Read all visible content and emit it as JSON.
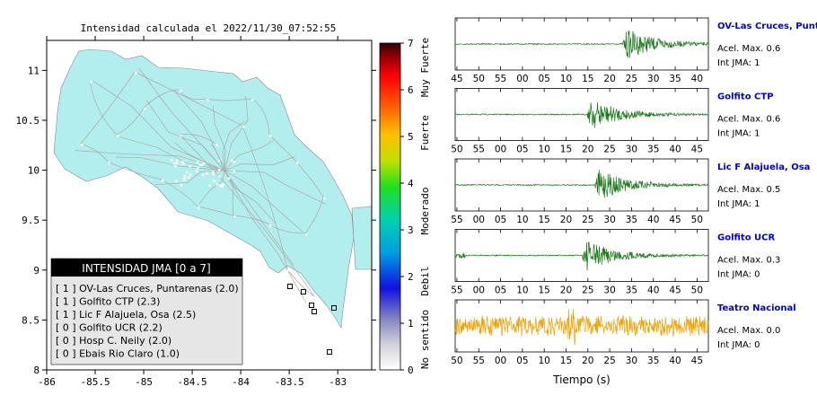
{
  "map": {
    "title": "Intensidad calculada el 2022/11/30_07:52:55",
    "lat_ticks": [
      "11",
      "10.5",
      "10",
      "9.5",
      "9",
      "8.5",
      "8"
    ],
    "lon_ticks": [
      "-86",
      "-85.5",
      "-85",
      "-84.5",
      "-84",
      "-83.5",
      "-83"
    ],
    "xlim": [
      -86,
      -82.65
    ],
    "ylim": [
      8,
      11.3
    ],
    "land_color": "#b3eeee",
    "legend": {
      "header": "INTENSIDAD JMA [0 a 7]",
      "rows": [
        "[ 1 ]  OV-Las Cruces, Puntarenas (2.0)",
        "[ 1 ]  Golfito CTP (2.3)",
        "[ 1 ]  Lic F Alajuela, Osa (2.5)",
        "[ 0 ]  Golfito UCR (2.2)",
        "[ 0 ]  Hosp C. Neily (2.0)",
        "[ 0 ]  Ebais Rio Claro (1.0)"
      ]
    }
  },
  "colorbar": {
    "ticks": [
      "0",
      "1",
      "2",
      "3",
      "4",
      "5",
      "6",
      "7"
    ],
    "categories": [
      "No sentido",
      "Debil",
      "Moderado",
      "Fuerte",
      "Muy Fuerte"
    ]
  },
  "chart_data": [
    {
      "type": "line",
      "station": "OV-Las Cruces, Puntar",
      "info1": "Acel. Max. 0.6",
      "info2": "Int JMA: 1",
      "ticks": [
        "45",
        "50",
        "55",
        "00",
        "05",
        "10",
        "15",
        "20",
        "25",
        "30",
        "35",
        "40"
      ],
      "onset_fraction": 0.66,
      "color": "#1a7a1a"
    },
    {
      "type": "line",
      "station": "Golfito CTP",
      "info1": "Acel. Max. 0.6",
      "info2": "Int JMA: 1",
      "ticks": [
        "50",
        "55",
        "00",
        "05",
        "10",
        "15",
        "20",
        "25",
        "30",
        "35",
        "40",
        "45"
      ],
      "onset_fraction": 0.52,
      "color": "#1a7a1a"
    },
    {
      "type": "line",
      "station": "Lic F Alajuela, Osa",
      "info1": "Acel. Max. 0.5",
      "info2": "Int JMA: 1",
      "ticks": [
        "55",
        "00",
        "05",
        "10",
        "15",
        "20",
        "25",
        "30",
        "35",
        "40",
        "45",
        "50"
      ],
      "onset_fraction": 0.55,
      "color": "#1a7a1a"
    },
    {
      "type": "line",
      "station": "Golfito UCR",
      "info1": "Acel. Max. 0.3",
      "info2": "Int JMA: 0",
      "ticks": [
        "55",
        "00",
        "05",
        "10",
        "15",
        "20",
        "25",
        "30",
        "35",
        "40",
        "45",
        "50"
      ],
      "onset_fraction": 0.5,
      "color": "#1a7a1a"
    },
    {
      "type": "line",
      "station": "Teatro Nacional",
      "info1": "Acel. Max. 0.0",
      "info2": "Int JMA: 0",
      "ticks": [
        "50",
        "55",
        "00",
        "05",
        "10",
        "15",
        "20",
        "25",
        "30",
        "35",
        "40",
        "45"
      ],
      "onset_fraction": null,
      "color": "#f0a000"
    }
  ],
  "xlabel": "Tiempo (s)",
  "station_color": "#0000dd"
}
